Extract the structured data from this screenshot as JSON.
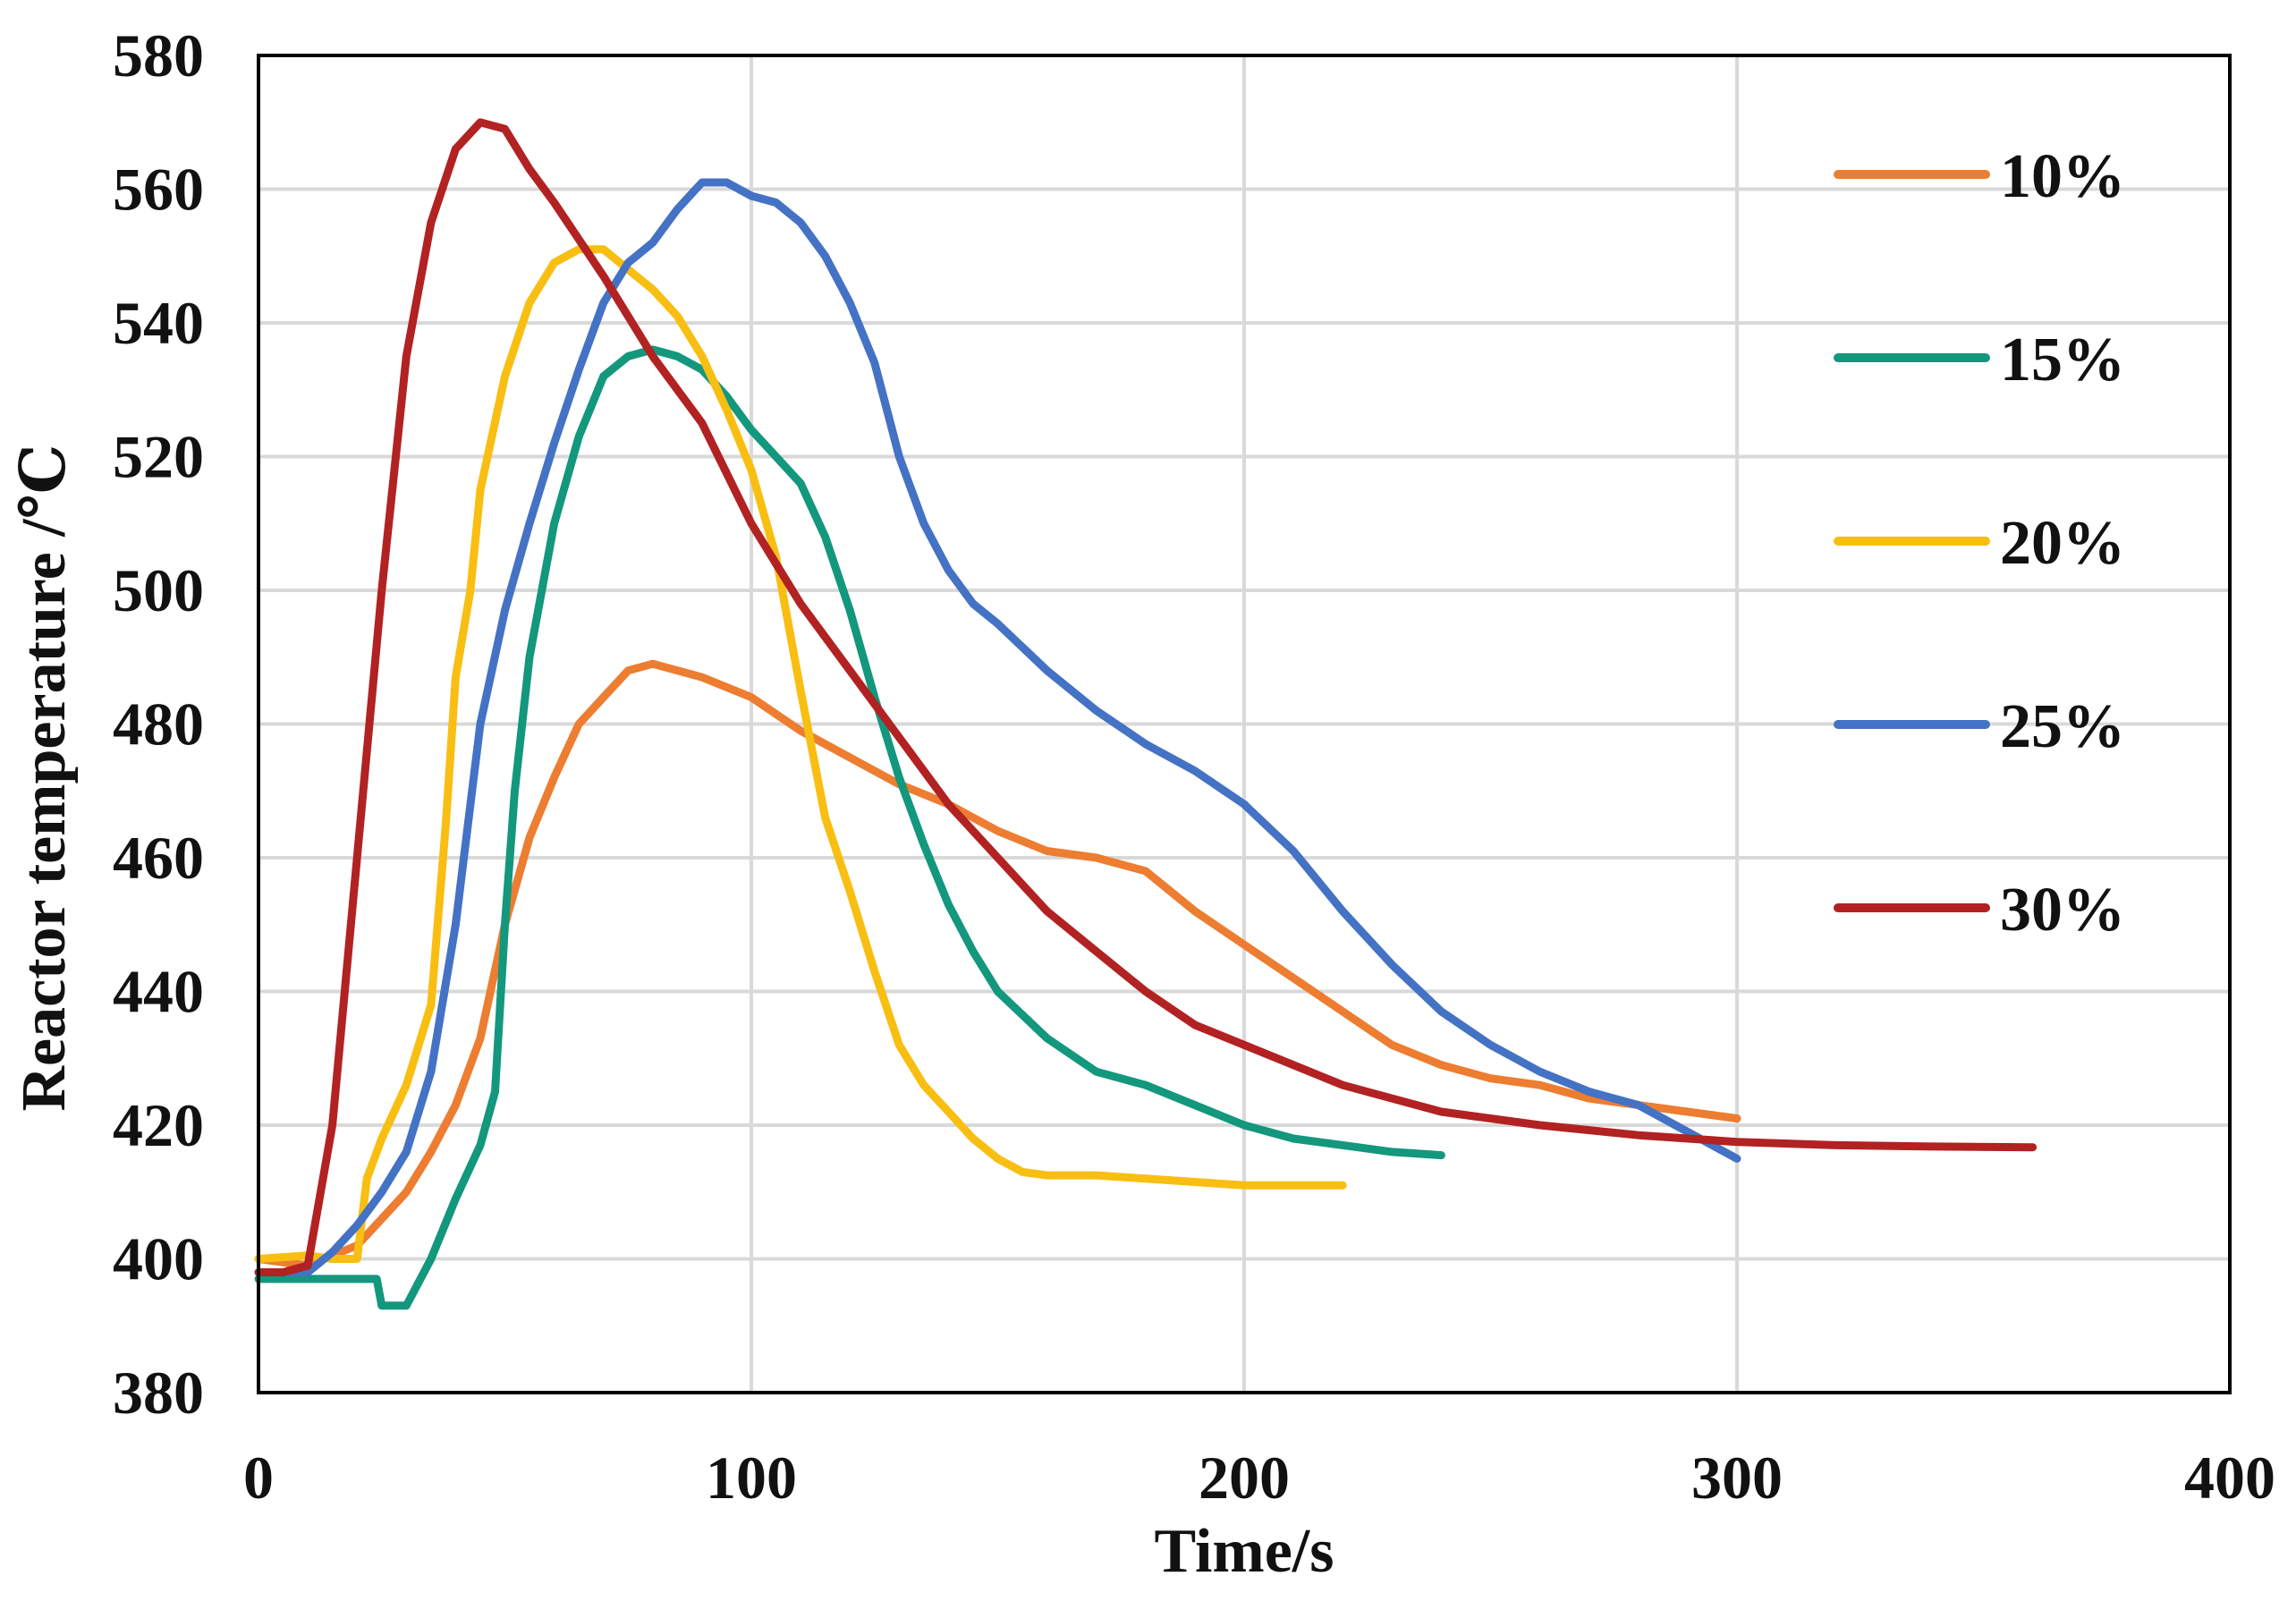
{
  "chart_data": {
    "type": "line",
    "title": "",
    "xlabel": "Time/s",
    "ylabel": "Reactor temperature /℃",
    "xlim": [
      0,
      400
    ],
    "ylim": [
      380,
      580
    ],
    "xticks": [
      0,
      100,
      200,
      300,
      400
    ],
    "yticks": [
      380,
      400,
      420,
      440,
      460,
      480,
      500,
      520,
      540,
      560,
      580
    ],
    "xtick_labels": [
      "0",
      "100",
      "200",
      "300",
      "400"
    ],
    "ytick_labels": [
      "380",
      "400",
      "420",
      "440",
      "460",
      "480",
      "500",
      "520",
      "540",
      "560",
      "580"
    ],
    "grid": true,
    "legend_position": "right",
    "series": [
      {
        "name": "10%",
        "color": "#ED7D31",
        "points": [
          [
            0,
            400
          ],
          [
            10,
            399
          ],
          [
            20,
            402
          ],
          [
            25,
            406
          ],
          [
            30,
            410
          ],
          [
            35,
            416
          ],
          [
            40,
            423
          ],
          [
            45,
            433
          ],
          [
            50,
            450
          ],
          [
            55,
            463
          ],
          [
            60,
            472
          ],
          [
            65,
            480
          ],
          [
            70,
            484
          ],
          [
            75,
            488
          ],
          [
            80,
            489
          ],
          [
            90,
            487
          ],
          [
            100,
            484
          ],
          [
            110,
            479
          ],
          [
            120,
            475
          ],
          [
            130,
            471
          ],
          [
            140,
            468
          ],
          [
            150,
            464
          ],
          [
            160,
            461
          ],
          [
            170,
            460
          ],
          [
            180,
            458
          ],
          [
            190,
            452
          ],
          [
            200,
            447
          ],
          [
            210,
            442
          ],
          [
            220,
            437
          ],
          [
            230,
            432
          ],
          [
            240,
            429
          ],
          [
            250,
            427
          ],
          [
            260,
            426
          ],
          [
            270,
            424
          ],
          [
            280,
            423
          ],
          [
            290,
            422
          ],
          [
            300,
            421
          ]
        ]
      },
      {
        "name": "15%",
        "color": "#13977D",
        "points": [
          [
            0,
            397
          ],
          [
            10,
            397
          ],
          [
            20,
            397
          ],
          [
            24,
            397
          ],
          [
            25,
            393
          ],
          [
            30,
            393
          ],
          [
            35,
            400
          ],
          [
            40,
            409
          ],
          [
            45,
            417
          ],
          [
            48,
            425
          ],
          [
            50,
            450
          ],
          [
            52,
            470
          ],
          [
            55,
            490
          ],
          [
            60,
            510
          ],
          [
            65,
            523
          ],
          [
            70,
            532
          ],
          [
            75,
            535
          ],
          [
            80,
            536
          ],
          [
            85,
            535
          ],
          [
            90,
            533
          ],
          [
            95,
            529
          ],
          [
            100,
            524
          ],
          [
            105,
            520
          ],
          [
            110,
            516
          ],
          [
            115,
            508
          ],
          [
            120,
            497
          ],
          [
            125,
            484
          ],
          [
            130,
            472
          ],
          [
            135,
            462
          ],
          [
            140,
            453
          ],
          [
            145,
            446
          ],
          [
            150,
            440
          ],
          [
            160,
            433
          ],
          [
            170,
            428
          ],
          [
            180,
            426
          ],
          [
            190,
            423
          ],
          [
            200,
            420
          ],
          [
            210,
            418
          ],
          [
            220,
            417
          ],
          [
            230,
            416
          ],
          [
            240,
            415.5
          ]
        ]
      },
      {
        "name": "20%",
        "color": "#F9BE12",
        "points": [
          [
            0,
            400
          ],
          [
            10,
            400.5
          ],
          [
            15,
            400
          ],
          [
            20,
            400
          ],
          [
            22,
            412
          ],
          [
            25,
            418
          ],
          [
            30,
            426
          ],
          [
            35,
            438
          ],
          [
            38,
            465
          ],
          [
            40,
            487
          ],
          [
            43,
            500
          ],
          [
            45,
            515
          ],
          [
            50,
            532
          ],
          [
            55,
            543
          ],
          [
            60,
            549
          ],
          [
            65,
            551
          ],
          [
            70,
            551
          ],
          [
            75,
            548
          ],
          [
            80,
            545
          ],
          [
            85,
            541
          ],
          [
            90,
            535
          ],
          [
            95,
            527
          ],
          [
            100,
            518
          ],
          [
            105,
            505
          ],
          [
            110,
            485
          ],
          [
            115,
            466
          ],
          [
            120,
            455
          ],
          [
            125,
            443
          ],
          [
            130,
            432
          ],
          [
            135,
            426
          ],
          [
            140,
            422
          ],
          [
            145,
            418
          ],
          [
            150,
            415
          ],
          [
            155,
            413
          ],
          [
            160,
            412.5
          ],
          [
            170,
            412.5
          ],
          [
            180,
            412
          ],
          [
            190,
            411.5
          ],
          [
            200,
            411
          ],
          [
            210,
            411
          ],
          [
            220,
            411
          ]
        ]
      },
      {
        "name": "25%",
        "color": "#4472C4",
        "points": [
          [
            0,
            398
          ],
          [
            10,
            398
          ],
          [
            15,
            401
          ],
          [
            20,
            405
          ],
          [
            25,
            410
          ],
          [
            30,
            416
          ],
          [
            35,
            428
          ],
          [
            40,
            450
          ],
          [
            45,
            480
          ],
          [
            50,
            497
          ],
          [
            55,
            510
          ],
          [
            60,
            522
          ],
          [
            65,
            533
          ],
          [
            70,
            543
          ],
          [
            75,
            549
          ],
          [
            80,
            552
          ],
          [
            85,
            557
          ],
          [
            90,
            561
          ],
          [
            95,
            561
          ],
          [
            100,
            559
          ],
          [
            105,
            558
          ],
          [
            110,
            555
          ],
          [
            115,
            550
          ],
          [
            120,
            543
          ],
          [
            125,
            534
          ],
          [
            130,
            520
          ],
          [
            135,
            510
          ],
          [
            140,
            503
          ],
          [
            145,
            498
          ],
          [
            150,
            495
          ],
          [
            160,
            488
          ],
          [
            170,
            482
          ],
          [
            180,
            477
          ],
          [
            190,
            473
          ],
          [
            200,
            468
          ],
          [
            210,
            461
          ],
          [
            220,
            452
          ],
          [
            230,
            444
          ],
          [
            240,
            437
          ],
          [
            250,
            432
          ],
          [
            260,
            428
          ],
          [
            270,
            425
          ],
          [
            280,
            423
          ],
          [
            290,
            419
          ],
          [
            300,
            415
          ]
        ]
      },
      {
        "name": "30%",
        "color": "#B22222",
        "points": [
          [
            0,
            398
          ],
          [
            5,
            398
          ],
          [
            10,
            399
          ],
          [
            15,
            420
          ],
          [
            20,
            460
          ],
          [
            25,
            500
          ],
          [
            30,
            535
          ],
          [
            35,
            555
          ],
          [
            40,
            566
          ],
          [
            45,
            570
          ],
          [
            50,
            569
          ],
          [
            55,
            563
          ],
          [
            60,
            558
          ],
          [
            70,
            547
          ],
          [
            80,
            535
          ],
          [
            90,
            525
          ],
          [
            100,
            510
          ],
          [
            110,
            498
          ],
          [
            120,
            488
          ],
          [
            130,
            478
          ],
          [
            140,
            468
          ],
          [
            150,
            460
          ],
          [
            160,
            452
          ],
          [
            170,
            446
          ],
          [
            180,
            440
          ],
          [
            190,
            435
          ],
          [
            200,
            432
          ],
          [
            220,
            426
          ],
          [
            240,
            422
          ],
          [
            260,
            420
          ],
          [
            280,
            418.5
          ],
          [
            300,
            417.5
          ],
          [
            320,
            417
          ],
          [
            340,
            416.8
          ],
          [
            360,
            416.7
          ]
        ]
      }
    ]
  }
}
